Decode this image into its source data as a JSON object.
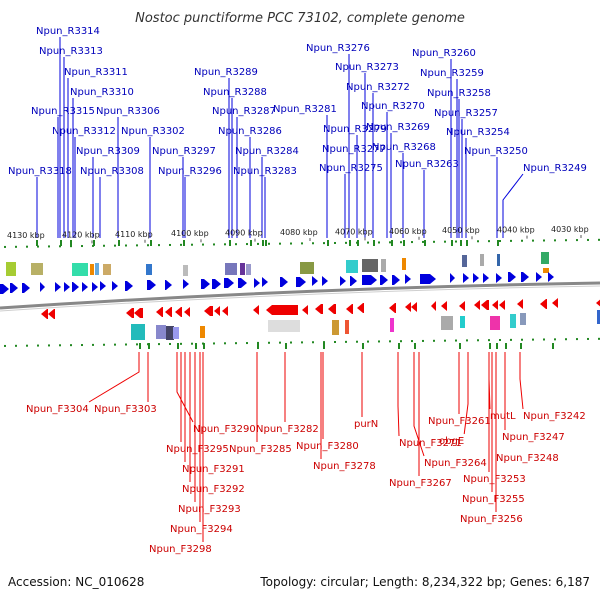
{
  "title": "Nostoc punctiforme PCC 73102, complete genome",
  "footer": {
    "accession": "Accession: NC_010628",
    "topology": "Topology: circular; Length: 8,234,322 bp; Genes: 6,187"
  },
  "colors": {
    "forward_strand": "#0000dd",
    "reverse_strand": "#ee0000",
    "backbone": "#888888",
    "tick": "#228822",
    "forward_label": "#0000bb",
    "reverse_label": "#cc0000"
  },
  "scale_ticks": [
    "4130 kbp",
    "4120 kbp",
    "4110 kbp",
    "4100 kbp",
    "4090 kbp",
    "4080 kbp",
    "4070 kbp",
    "4060 kbp",
    "4050 kbp",
    "4040 kbp",
    "4030 kbp"
  ],
  "forward_genes": [
    "Npun_R3314",
    "Npun_R3313",
    "Npun_R3311",
    "Npun_R3310",
    "Npun_R3315",
    "Npun_R3306",
    "Npun_R3312",
    "Npun_R3302",
    "Npun_R3309",
    "Npun_R3318",
    "Npun_R3308",
    "Npun_R3297",
    "Npun_R3296",
    "Npun_R3289",
    "Npun_R3288",
    "Npun_R3287",
    "Npun_R3286",
    "Npun_R3284",
    "Npun_R3283",
    "Npun_R3276",
    "Npun_R3273",
    "Npun_R3272",
    "Npun_R3281",
    "Npun_R3270",
    "Npun_R3279",
    "Npun_R3269",
    "Npun_R3277",
    "Npun_R3268",
    "Npun_R3275",
    "Npun_R3263",
    "Npun_R3260",
    "Npun_R3259",
    "Npun_R3258",
    "Npun_R3257",
    "Npun_R3254",
    "Npun_R3250",
    "Npun_R3249"
  ],
  "reverse_genes": [
    "Npun_F3304",
    "Npun_F3303",
    "Npun_F3290",
    "Npun_F3295",
    "Npun_F3291",
    "Npun_F3292",
    "Npun_F3293",
    "Npun_F3294",
    "Npun_F3298",
    "Npun_F3282",
    "Npun_F3285",
    "Npun_F3280",
    "Npun_F3278",
    "purN",
    "Npun_F3271",
    "Npun_F3264",
    "Npun_F3267",
    "Npun_F3261",
    "obgE",
    "mutL",
    "Npun_F3242",
    "Npun_F3247",
    "Npun_F3248",
    "Npun_F3253",
    "Npun_F3255",
    "Npun_F3256"
  ]
}
